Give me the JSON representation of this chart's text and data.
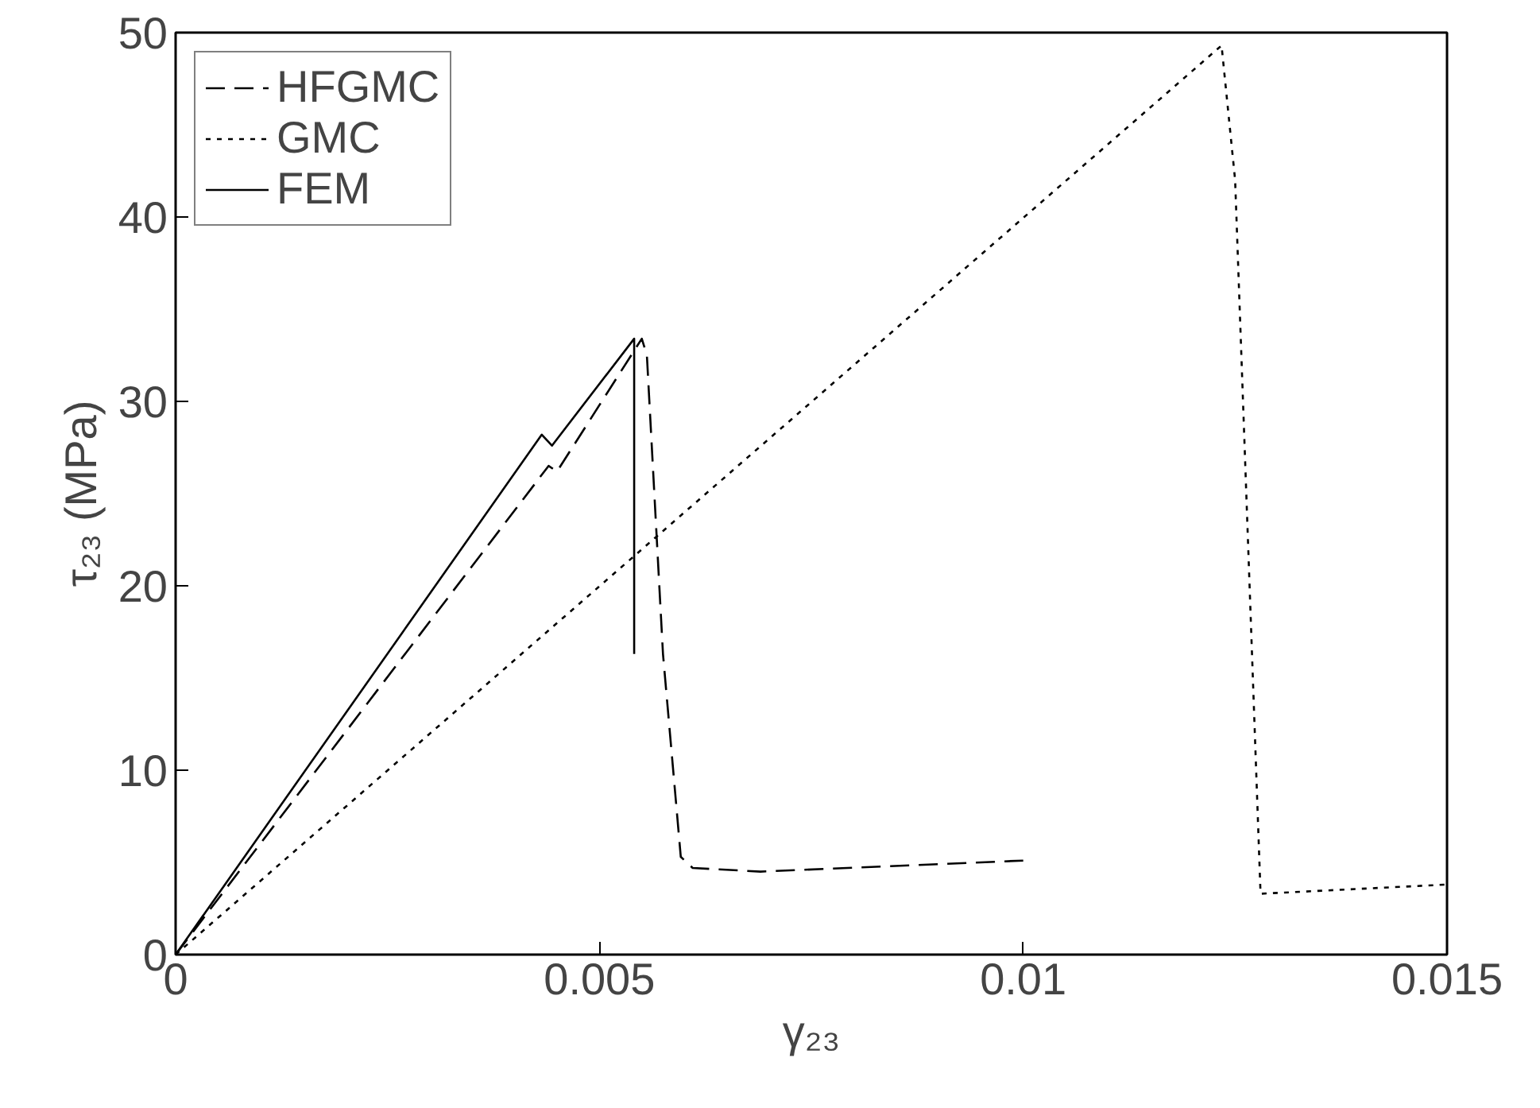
{
  "chart_data": {
    "type": "line",
    "xlabel": "γ₂₃",
    "ylabel": "τ₂₃ (MPa)",
    "xlim": [
      0,
      0.015
    ],
    "ylim": [
      0,
      50
    ],
    "xticks": [
      0,
      0.005,
      0.01,
      0.015
    ],
    "yticks": [
      0,
      10,
      20,
      30,
      40,
      50
    ],
    "grid": false,
    "legend": "top left",
    "series": [
      {
        "name": "HFGMC",
        "color": "#000000",
        "line_style": "dashed",
        "x": [
          0,
          0.0044,
          0.0045,
          0.0055,
          0.00556,
          0.00575,
          0.00596,
          0.0061,
          0.0069,
          0.01
        ],
        "values": [
          0,
          26.5,
          26.2,
          33.4,
          32.5,
          16.3,
          5.3,
          4.7,
          4.5,
          5.1
        ]
      },
      {
        "name": "GMC",
        "color": "#000000",
        "line_style": "dotted",
        "x": [
          0,
          0.01234,
          0.0125,
          0.0128,
          0.015
        ],
        "values": [
          0,
          49.3,
          42,
          3.3,
          3.8
        ]
      },
      {
        "name": "FEM",
        "color": "#000000",
        "line_style": "solid",
        "x": [
          0,
          0.00432,
          0.00444,
          0.00541,
          0.00541
        ],
        "values": [
          0,
          28.2,
          27.6,
          33.4,
          16.3
        ]
      }
    ]
  }
}
